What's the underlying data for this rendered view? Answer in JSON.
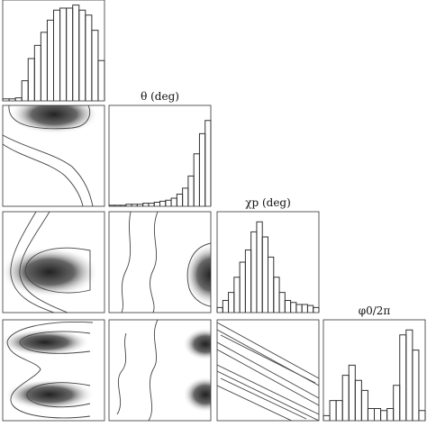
{
  "chart_data": [
    {
      "type": "histogram",
      "values": [
        0.02,
        0.02,
        0.03,
        0.2,
        0.42,
        0.55,
        0.68,
        0.8,
        0.9,
        0.92,
        0.92,
        0.95,
        0.9,
        0.85,
        0.7,
        0.4
      ],
      "ylim": [
        0,
        1
      ],
      "color": "#333333"
    },
    {
      "type": "histogram",
      "title": "θ (deg)",
      "values": [
        0.01,
        0.01,
        0.01,
        0.02,
        0.02,
        0.02,
        0.03,
        0.03,
        0.04,
        0.05,
        0.06,
        0.08,
        0.12,
        0.18,
        0.3,
        0.52,
        0.72,
        0.85
      ],
      "ylim": [
        0,
        1
      ],
      "color": "#333333"
    },
    {
      "type": "histogram",
      "title": "χp (deg)",
      "values": [
        0.05,
        0.12,
        0.2,
        0.35,
        0.5,
        0.62,
        0.8,
        0.9,
        0.75,
        0.55,
        0.35,
        0.2,
        0.12,
        0.1,
        0.08,
        0.08,
        0.07,
        0.05
      ],
      "ylim": [
        0,
        1
      ],
      "color": "#333333"
    },
    {
      "type": "histogram",
      "title": "φ0/2π",
      "values": [
        0.05,
        0.2,
        0.2,
        0.45,
        0.55,
        0.4,
        0.3,
        0.12,
        0.12,
        0.1,
        0.12,
        0.35,
        0.85,
        0.9,
        0.7,
        0.1
      ],
      "ylim": [
        0,
        1
      ],
      "color": "#333333"
    }
  ]
}
